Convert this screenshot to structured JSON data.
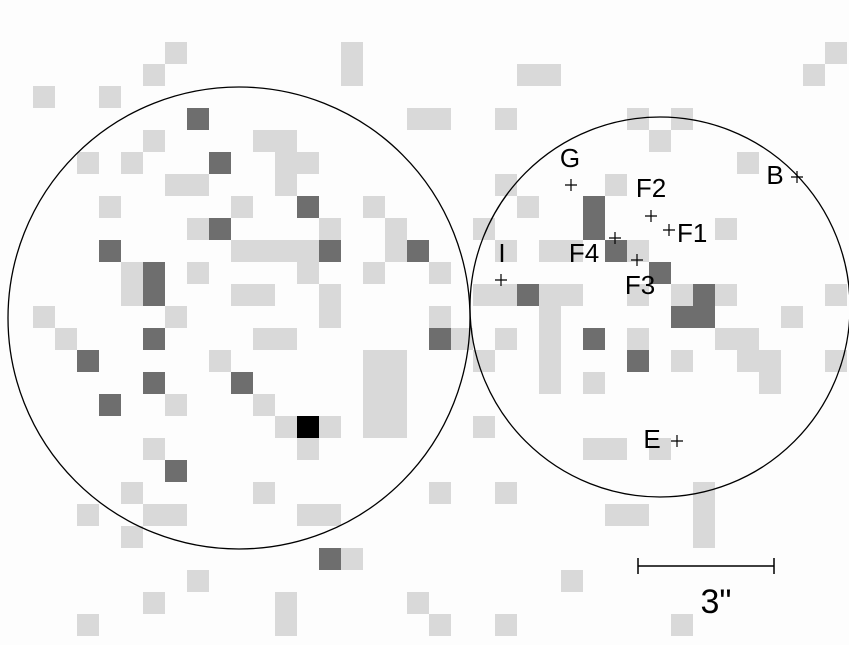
{
  "labels": [
    {
      "text": "G"
    },
    {
      "text": "F2"
    },
    {
      "text": "F1"
    },
    {
      "text": "B"
    },
    {
      "text": "I"
    },
    {
      "text": "F4"
    },
    {
      "text": "F3"
    },
    {
      "text": "E"
    }
  ],
  "scale_bar": {
    "label": "3\""
  }
}
